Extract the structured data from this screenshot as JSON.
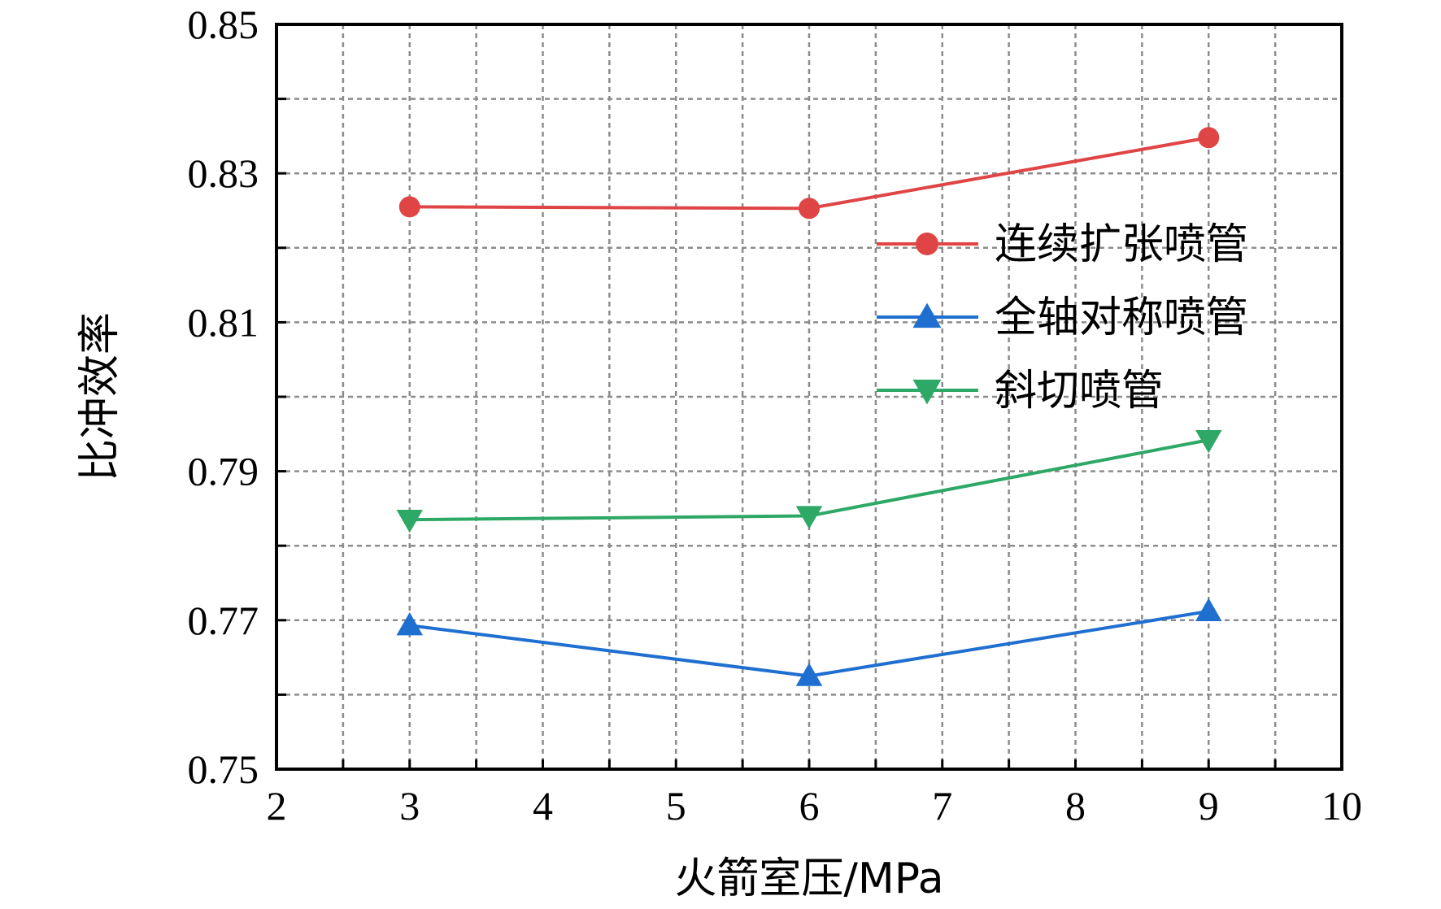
{
  "chart_data": {
    "type": "line",
    "xlabel": "火箭室压/MPa",
    "ylabel": "比冲效率",
    "xlim": [
      2,
      10
    ],
    "ylim": [
      0.75,
      0.85
    ],
    "x_ticks": [
      2,
      3,
      4,
      5,
      6,
      7,
      8,
      9,
      10
    ],
    "y_ticks": [
      "0.75",
      "0.77",
      "0.79",
      "0.81",
      "0.83",
      "0.85"
    ],
    "grid": true,
    "legend_position": "top-right",
    "x": [
      3,
      6,
      9
    ],
    "series": [
      {
        "name": "连续扩张喷管",
        "values": [
          0.8255,
          0.8253,
          0.8348
        ],
        "color": "#e04545",
        "marker": "circle"
      },
      {
        "name": "全轴对称喷管",
        "values": [
          0.7693,
          0.7625,
          0.7712
        ],
        "color": "#1f6fd1",
        "marker": "triangle-up"
      },
      {
        "name": "斜切喷管",
        "values": [
          0.7835,
          0.784,
          0.7942
        ],
        "color": "#2ea866",
        "marker": "triangle-down"
      }
    ]
  }
}
